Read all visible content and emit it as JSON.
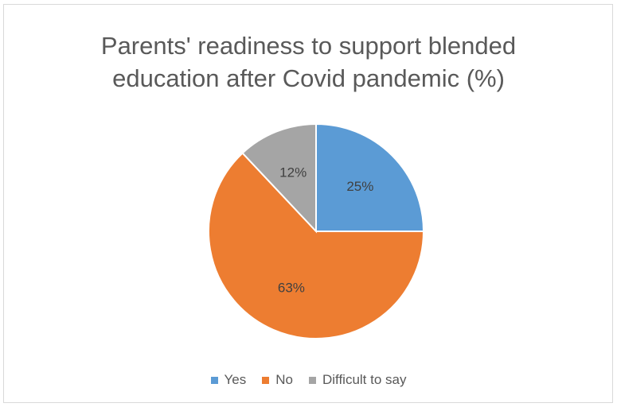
{
  "chart_data": {
    "type": "pie",
    "title_lines": [
      "Parents' readiness to support blended",
      "education after Covid pandemic (%)"
    ],
    "categories": [
      "Yes",
      "No",
      "Difficult to say"
    ],
    "values": [
      25,
      63,
      12
    ],
    "labels": [
      "25%",
      "63%",
      "12%"
    ],
    "colors": [
      "#5b9bd5",
      "#ed7d31",
      "#a5a5a5"
    ],
    "legend_position": "bottom",
    "start_angle": "12 o'clock",
    "direction": "clockwise"
  }
}
